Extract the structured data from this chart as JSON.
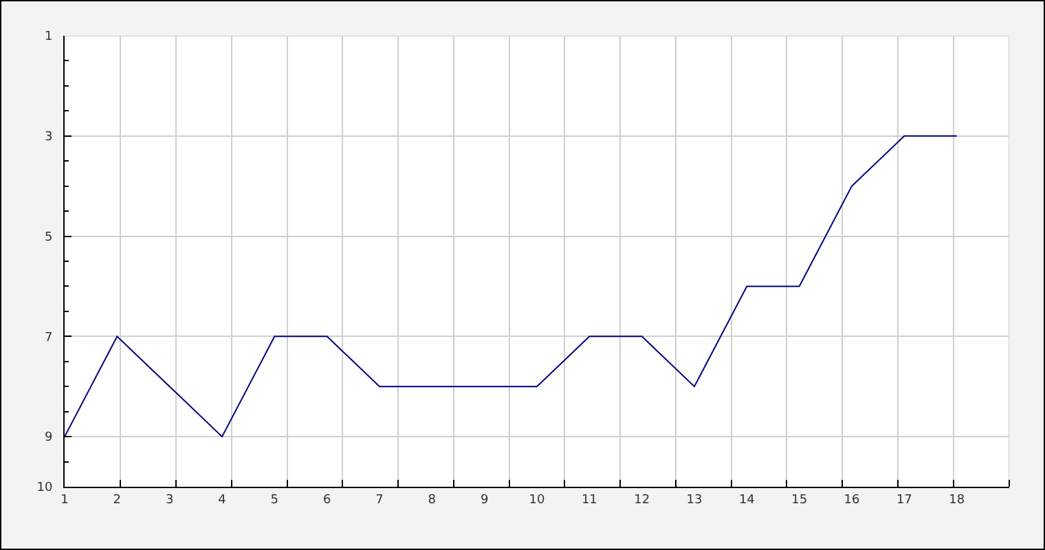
{
  "chart_data": {
    "type": "line",
    "x": [
      1,
      2,
      3,
      4,
      5,
      6,
      7,
      8,
      9,
      10,
      11,
      12,
      13,
      14,
      15,
      16,
      17,
      18
    ],
    "series": [
      {
        "color": "#000080",
        "values": [
          9,
          7,
          8,
          9,
          7,
          7,
          8,
          8,
          8,
          8,
          7,
          7,
          8,
          6,
          6,
          4,
          3,
          3
        ]
      }
    ],
    "xlim": [
      1,
      19
    ],
    "xticks": [
      1,
      2,
      {
        "value": 2.06,
        "label": null
      },
      3,
      {
        "value": 3.12,
        "label": null
      },
      4,
      {
        "value": 4.18,
        "label": null
      },
      5,
      {
        "value": 5.24,
        "label": null
      },
      6,
      {
        "value": 6.29,
        "label": null
      },
      7,
      {
        "value": 7.35,
        "label": null
      },
      8,
      {
        "value": 8.41,
        "label": null
      },
      9,
      {
        "value": 9.47,
        "label": null
      },
      10,
      {
        "value": 10.53,
        "label": null
      },
      11,
      {
        "value": 11.59,
        "label": null
      },
      12,
      {
        "value": 12.65,
        "label": null
      },
      13,
      {
        "value": 13.71,
        "label": null
      },
      14,
      {
        "value": 14.76,
        "label": null
      },
      15,
      {
        "value": 15.82,
        "label": null
      },
      16,
      {
        "value": 16.88,
        "label": null
      },
      17,
      {
        "value": 17.94,
        "label": null
      },
      18,
      {
        "value": 19,
        "label": null
      }
    ],
    "ylim": [
      10,
      1
    ],
    "yticks": [
      1,
      {
        "value": 1.5,
        "label": null
      },
      {
        "value": 2,
        "label": null
      },
      {
        "value": 2.5,
        "label": null
      },
      3,
      {
        "value": 3.5,
        "label": null
      },
      {
        "value": 4,
        "label": null
      },
      {
        "value": 4.5,
        "label": null
      },
      5,
      {
        "value": 5.5,
        "label": null
      },
      {
        "value": 6,
        "label": null
      },
      {
        "value": 6.5,
        "label": null
      },
      7,
      {
        "value": 7.5,
        "label": null
      },
      {
        "value": 8,
        "label": null
      },
      {
        "value": 8.5,
        "label": null
      },
      9,
      {
        "value": 9.5,
        "label": null
      },
      10
    ],
    "grid": true,
    "marker": "none",
    "line_style": "solid"
  }
}
